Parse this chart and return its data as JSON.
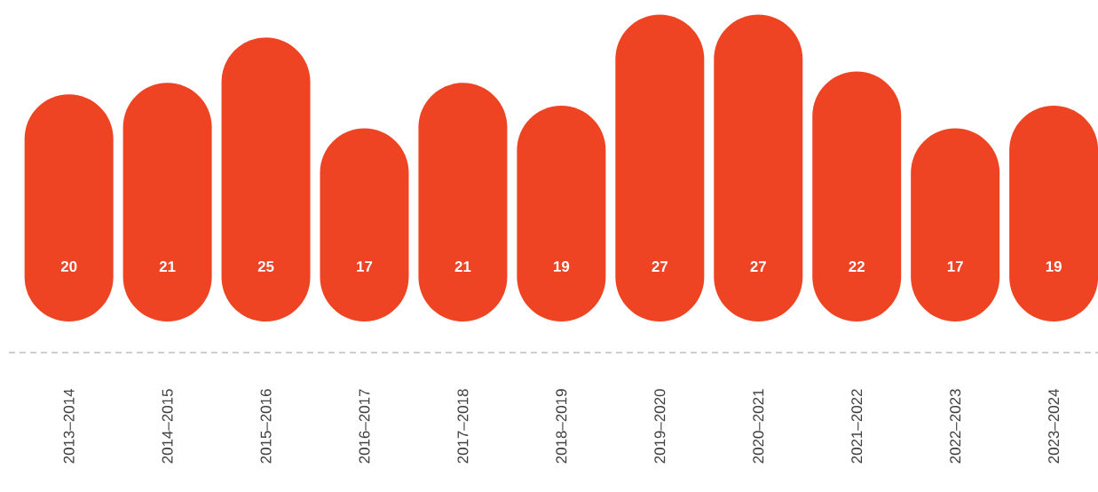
{
  "chart_data": {
    "type": "bar",
    "categories": [
      "2013–2014",
      "2014–2015",
      "2015–2016",
      "2016–2017",
      "2017–2018",
      "2018–2019",
      "2019–2020",
      "2020–2021",
      "2021–2022",
      "2022–2023",
      "2023–2024"
    ],
    "values": [
      20,
      21,
      25,
      17,
      21,
      19,
      27,
      27,
      22,
      17,
      19
    ],
    "color": "#ef4423",
    "data_labels": true
  }
}
